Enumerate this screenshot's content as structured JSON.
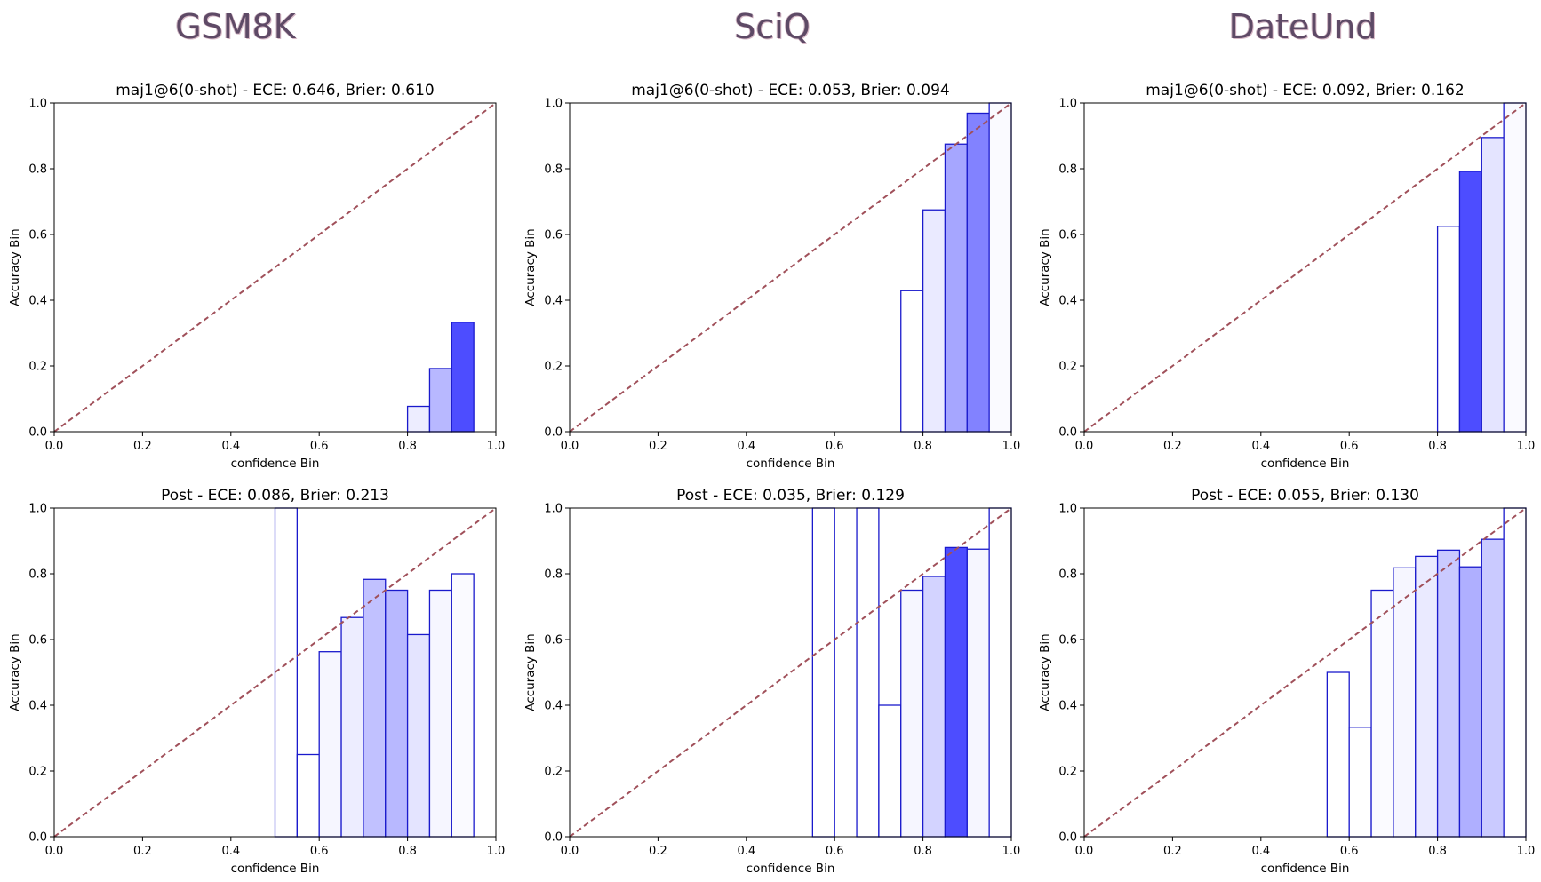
{
  "column_titles": [
    "GSM8K",
    "SciQ",
    "DateUnd"
  ],
  "colors": {
    "bar_edge": "#1a1acc",
    "diag": "#a0505a",
    "max_fill": "#4d4dff"
  },
  "chart_data": [
    {
      "type": "bar",
      "title": "maj1@6(0-shot) - ECE: 0.646, Brier: 0.610",
      "xlabel": "confidence Bin",
      "ylabel": "Accuracy Bin",
      "xlim": [
        0,
        1
      ],
      "ylim": [
        0,
        1
      ],
      "xticks": [
        "0.0",
        "0.2",
        "0.4",
        "0.6",
        "0.8",
        "1.0"
      ],
      "yticks": [
        "0.0",
        "0.2",
        "0.4",
        "0.6",
        "0.8",
        "1.0"
      ],
      "bin_width": 0.05,
      "diagonal": true,
      "bins": [
        {
          "x": 0.8,
          "acc": 0.077,
          "alpha": 0.1
        },
        {
          "x": 0.85,
          "acc": 0.192,
          "alpha": 0.4
        },
        {
          "x": 0.9,
          "acc": 0.333,
          "alpha": 1.0
        }
      ]
    },
    {
      "type": "bar",
      "title": "maj1@6(0-shot) - ECE: 0.053, Brier: 0.094",
      "xlabel": "confidence Bin",
      "ylabel": "Accuracy Bin",
      "xlim": [
        0,
        1
      ],
      "ylim": [
        0,
        1
      ],
      "xticks": [
        "0.0",
        "0.2",
        "0.4",
        "0.6",
        "0.8",
        "1.0"
      ],
      "yticks": [
        "0.0",
        "0.2",
        "0.4",
        "0.6",
        "0.8",
        "1.0"
      ],
      "bin_width": 0.05,
      "diagonal": true,
      "bins": [
        {
          "x": 0.75,
          "acc": 0.429,
          "alpha": 0.0
        },
        {
          "x": 0.8,
          "acc": 0.675,
          "alpha": 0.12
        },
        {
          "x": 0.85,
          "acc": 0.875,
          "alpha": 0.5
        },
        {
          "x": 0.9,
          "acc": 0.969,
          "alpha": 0.7
        },
        {
          "x": 0.95,
          "acc": 1.0,
          "alpha": 0.03
        }
      ]
    },
    {
      "type": "bar",
      "title": "maj1@6(0-shot) - ECE: 0.092, Brier: 0.162",
      "xlabel": "confidence Bin",
      "ylabel": "Accuracy Bin",
      "xlim": [
        0,
        1
      ],
      "ylim": [
        0,
        1
      ],
      "xticks": [
        "0.0",
        "0.2",
        "0.4",
        "0.6",
        "0.8",
        "1.0"
      ],
      "yticks": [
        "0.0",
        "0.2",
        "0.4",
        "0.6",
        "0.8",
        "1.0"
      ],
      "bin_width": 0.05,
      "diagonal": true,
      "bins": [
        {
          "x": 0.8,
          "acc": 0.625,
          "alpha": 0.0
        },
        {
          "x": 0.85,
          "acc": 0.792,
          "alpha": 1.0
        },
        {
          "x": 0.9,
          "acc": 0.895,
          "alpha": 0.15
        },
        {
          "x": 0.95,
          "acc": 1.0,
          "alpha": 0.03
        }
      ]
    },
    {
      "type": "bar",
      "title": "Post - ECE: 0.086, Brier: 0.213",
      "xlabel": "confidence Bin",
      "ylabel": "Accuracy Bin",
      "xlim": [
        0,
        1
      ],
      "ylim": [
        0,
        1
      ],
      "xticks": [
        "0.0",
        "0.2",
        "0.4",
        "0.6",
        "0.8",
        "1.0"
      ],
      "yticks": [
        "0.0",
        "0.2",
        "0.4",
        "0.6",
        "0.8",
        "1.0"
      ],
      "bin_width": 0.05,
      "diagonal": true,
      "bins": [
        {
          "x": 0.5,
          "acc": 1.0,
          "alpha": 0.0
        },
        {
          "x": 0.55,
          "acc": 0.25,
          "alpha": 0.0
        },
        {
          "x": 0.6,
          "acc": 0.563,
          "alpha": 0.05
        },
        {
          "x": 0.65,
          "acc": 0.667,
          "alpha": 0.1
        },
        {
          "x": 0.7,
          "acc": 0.783,
          "alpha": 0.35
        },
        {
          "x": 0.75,
          "acc": 0.75,
          "alpha": 0.4
        },
        {
          "x": 0.8,
          "acc": 0.615,
          "alpha": 0.15
        },
        {
          "x": 0.85,
          "acc": 0.75,
          "alpha": 0.05
        },
        {
          "x": 0.9,
          "acc": 0.8,
          "alpha": 0.03
        }
      ]
    },
    {
      "type": "bar",
      "title": "Post - ECE: 0.035, Brier: 0.129",
      "xlabel": "confidence Bin",
      "ylabel": "Accuracy Bin",
      "xlim": [
        0,
        1
      ],
      "ylim": [
        0,
        1
      ],
      "xticks": [
        "0.0",
        "0.2",
        "0.4",
        "0.6",
        "0.8",
        "1.0"
      ],
      "yticks": [
        "0.0",
        "0.2",
        "0.4",
        "0.6",
        "0.8",
        "1.0"
      ],
      "bin_width": 0.05,
      "diagonal": true,
      "bins": [
        {
          "x": 0.55,
          "acc": 1.0,
          "alpha": 0.0
        },
        {
          "x": 0.65,
          "acc": 1.0,
          "alpha": 0.0
        },
        {
          "x": 0.7,
          "acc": 0.4,
          "alpha": 0.0
        },
        {
          "x": 0.75,
          "acc": 0.75,
          "alpha": 0.05
        },
        {
          "x": 0.8,
          "acc": 0.792,
          "alpha": 0.25
        },
        {
          "x": 0.85,
          "acc": 0.88,
          "alpha": 1.0
        },
        {
          "x": 0.9,
          "acc": 0.875,
          "alpha": 0.05
        },
        {
          "x": 0.95,
          "acc": 1.0,
          "alpha": 0.0
        }
      ]
    },
    {
      "type": "bar",
      "title": "Post - ECE: 0.055, Brier: 0.130",
      "xlabel": "confidence Bin",
      "ylabel": "Accuracy Bin",
      "xlim": [
        0,
        1
      ],
      "ylim": [
        0,
        1
      ],
      "xticks": [
        "0.0",
        "0.2",
        "0.4",
        "0.6",
        "0.8",
        "1.0"
      ],
      "yticks": [
        "0.0",
        "0.2",
        "0.4",
        "0.6",
        "0.8",
        "1.0"
      ],
      "bin_width": 0.05,
      "diagonal": true,
      "bins": [
        {
          "x": 0.55,
          "acc": 0.5,
          "alpha": 0.0
        },
        {
          "x": 0.6,
          "acc": 0.333,
          "alpha": 0.0
        },
        {
          "x": 0.65,
          "acc": 0.75,
          "alpha": 0.02
        },
        {
          "x": 0.7,
          "acc": 0.818,
          "alpha": 0.05
        },
        {
          "x": 0.75,
          "acc": 0.853,
          "alpha": 0.12
        },
        {
          "x": 0.8,
          "acc": 0.872,
          "alpha": 0.3
        },
        {
          "x": 0.85,
          "acc": 0.821,
          "alpha": 0.45
        },
        {
          "x": 0.9,
          "acc": 0.905,
          "alpha": 0.3
        },
        {
          "x": 0.95,
          "acc": 1.0,
          "alpha": 0.0
        }
      ]
    }
  ]
}
